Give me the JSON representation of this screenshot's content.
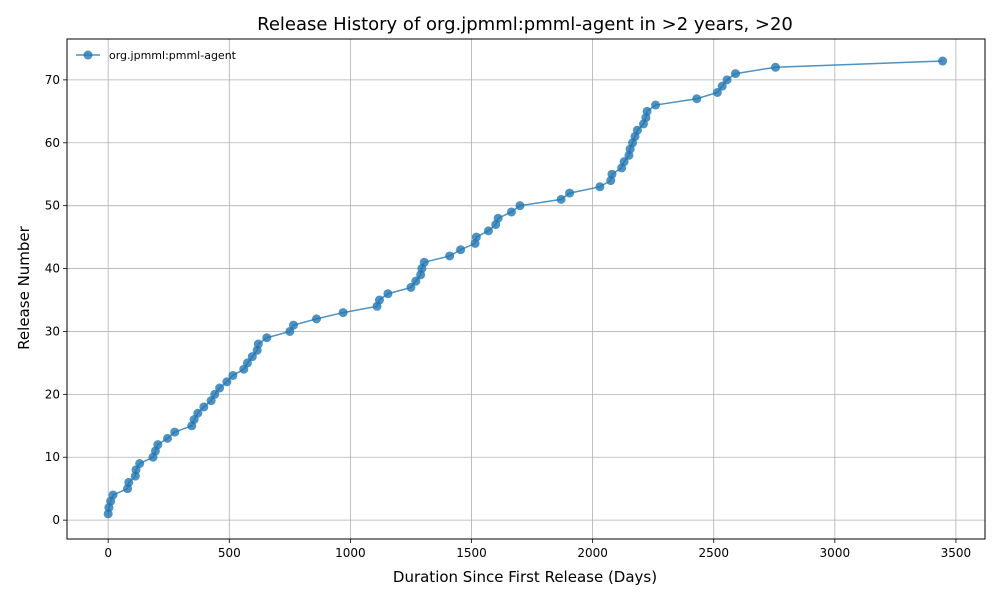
{
  "chart_data": {
    "type": "line",
    "title": "Release History of org.jpmml:pmml-agent in >2 years, >20",
    "xlabel": "Duration Since First Release (Days)",
    "ylabel": "Release Number",
    "xlim": [
      -170,
      3620
    ],
    "ylim": [
      -3,
      76.5
    ],
    "x_ticks": [
      0,
      500,
      1000,
      1500,
      2000,
      2500,
      3000,
      3500
    ],
    "y_ticks": [
      0,
      10,
      20,
      30,
      40,
      50,
      60,
      70
    ],
    "grid": true,
    "legend_position": "top-left",
    "series": [
      {
        "name": "org.jpmml:pmml-agent",
        "color": "#1f77b4",
        "marker": "circle",
        "points": [
          [
            0,
            1
          ],
          [
            3,
            2
          ],
          [
            10,
            3
          ],
          [
            20,
            4
          ],
          [
            80,
            5
          ],
          [
            85,
            6
          ],
          [
            112,
            7
          ],
          [
            115,
            8
          ],
          [
            130,
            9
          ],
          [
            185,
            10
          ],
          [
            195,
            11
          ],
          [
            205,
            12
          ],
          [
            245,
            13
          ],
          [
            275,
            14
          ],
          [
            345,
            15
          ],
          [
            355,
            16
          ],
          [
            370,
            17
          ],
          [
            395,
            18
          ],
          [
            425,
            19
          ],
          [
            440,
            20
          ],
          [
            460,
            21
          ],
          [
            490,
            22
          ],
          [
            515,
            23
          ],
          [
            560,
            24
          ],
          [
            575,
            25
          ],
          [
            595,
            26
          ],
          [
            615,
            27
          ],
          [
            620,
            28
          ],
          [
            655,
            29
          ],
          [
            750,
            30
          ],
          [
            765,
            31
          ],
          [
            860,
            32
          ],
          [
            970,
            33
          ],
          [
            1110,
            34
          ],
          [
            1120,
            35
          ],
          [
            1155,
            36
          ],
          [
            1250,
            37
          ],
          [
            1270,
            38
          ],
          [
            1290,
            39
          ],
          [
            1295,
            40
          ],
          [
            1305,
            41
          ],
          [
            1410,
            42
          ],
          [
            1455,
            43
          ],
          [
            1515,
            44
          ],
          [
            1520,
            45
          ],
          [
            1570,
            46
          ],
          [
            1600,
            47
          ],
          [
            1610,
            48
          ],
          [
            1665,
            49
          ],
          [
            1700,
            50
          ],
          [
            1870,
            51
          ],
          [
            1905,
            52
          ],
          [
            2030,
            53
          ],
          [
            2075,
            54
          ],
          [
            2080,
            55
          ],
          [
            2120,
            56
          ],
          [
            2130,
            57
          ],
          [
            2150,
            58
          ],
          [
            2155,
            59
          ],
          [
            2165,
            60
          ],
          [
            2175,
            61
          ],
          [
            2185,
            62
          ],
          [
            2210,
            63
          ],
          [
            2220,
            64
          ],
          [
            2225,
            65
          ],
          [
            2260,
            66
          ],
          [
            2430,
            67
          ],
          [
            2515,
            68
          ],
          [
            2535,
            69
          ],
          [
            2555,
            70
          ],
          [
            2590,
            71
          ],
          [
            2755,
            72
          ],
          [
            3445,
            73
          ]
        ]
      }
    ]
  }
}
